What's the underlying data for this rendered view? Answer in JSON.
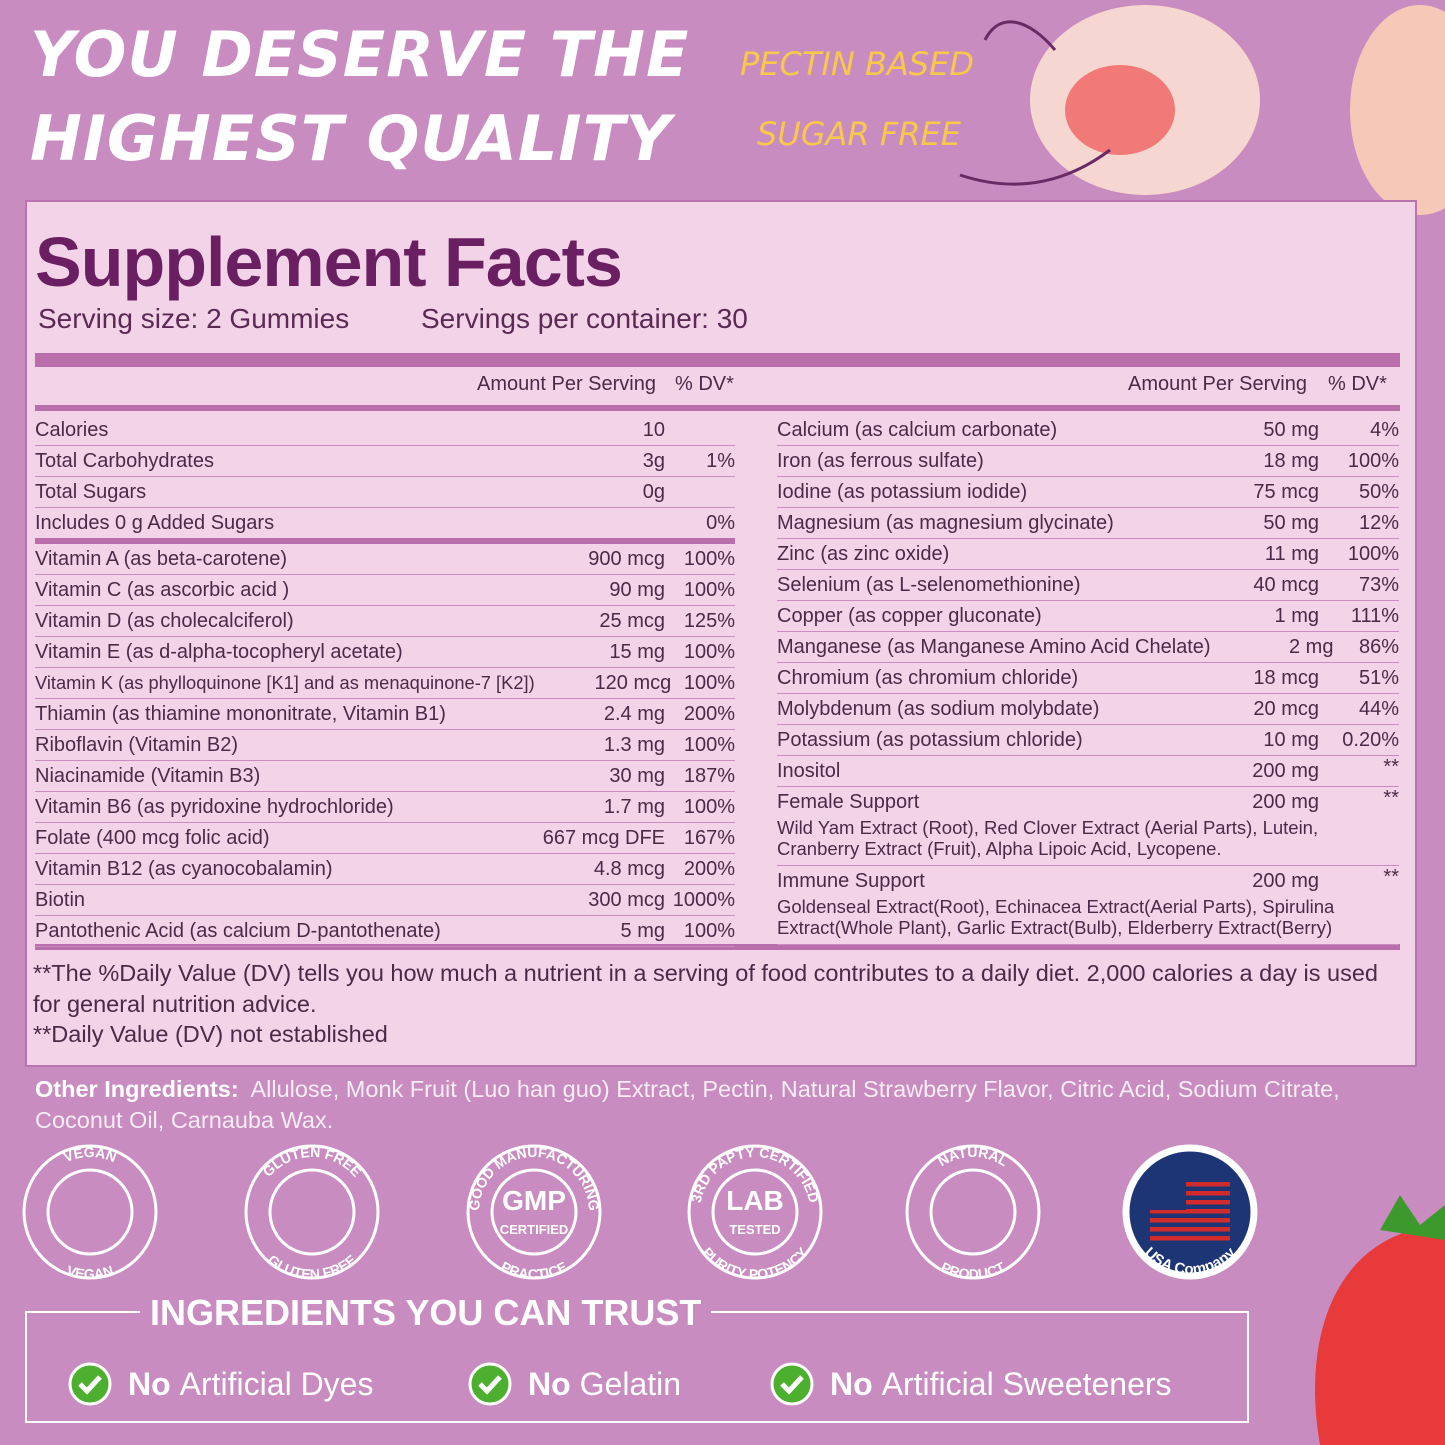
{
  "header": {
    "title_lines": [
      "YOU DESERVE THE",
      "HIGHEST QUALITY"
    ],
    "tags": [
      "PECTIN BASED",
      "SUGAR FREE"
    ]
  },
  "facts": {
    "title": "Supplement Facts",
    "serving_size": "Serving size: 2 Gummies",
    "servings_per_container": "Servings per container: 30",
    "columns": [
      "Amount Per Serving",
      "% DV*"
    ],
    "left_rows": [
      {
        "name": "Calories",
        "amount": "10"
      },
      {
        "name": "Total Carbohydrates",
        "amount": "3g",
        "dv": "1%"
      },
      {
        "name": "Total Sugars",
        "amount": "0g"
      },
      {
        "name": "Includes 0 g Added Sugars",
        "dv": "0%"
      },
      {
        "name": "Vitamin A (as beta-carotene)",
        "amount": "900 mcg",
        "dv": "100%"
      },
      {
        "name": "Vitamin C (as ascorbic acid )",
        "amount": "90 mg",
        "dv": "100%"
      },
      {
        "name": "Vitamin D (as cholecalciferol)",
        "amount": "25 mcg",
        "dv": "125%"
      },
      {
        "name": "Vitamin E (as d-alpha-tocopheryl acetate)",
        "amount": "15 mg",
        "dv": "100%"
      },
      {
        "name": "Vitamin K (as phylloquinone [K1] and as menaquinone-7 [K2])",
        "amount": "120 mcg",
        "dv": "100%"
      },
      {
        "name": "Thiamin (as thiamine mononitrate, Vitamin B1)",
        "amount": "2.4 mg",
        "dv": "200%"
      },
      {
        "name": "Riboflavin (Vitamin B2)",
        "amount": "1.3 mg",
        "dv": "100%"
      },
      {
        "name": "Niacinamide (Vitamin B3)",
        "amount": "30 mg",
        "dv": "187%"
      },
      {
        "name": "Vitamin B6 (as pyridoxine hydrochloride)",
        "amount": "1.7 mg",
        "dv": "100%"
      },
      {
        "name": "Folate (400 mcg folic acid)",
        "amount": "667 mcg DFE",
        "dv": "167%"
      },
      {
        "name": "Vitamin B12 (as cyanocobalamin)",
        "amount": "4.8 mcg",
        "dv": "200%"
      },
      {
        "name": "Biotin",
        "amount": "300 mcg",
        "dv": "1000%"
      },
      {
        "name": "Pantothenic Acid (as calcium D-pantothenate)",
        "amount": "5 mg",
        "dv": "100%"
      }
    ],
    "right_rows": [
      {
        "name": "Calcium (as calcium carbonate)",
        "amount": "50 mg",
        "dv": "4%"
      },
      {
        "name": "Iron (as ferrous sulfate)",
        "amount": "18 mg",
        "dv": "100%"
      },
      {
        "name": "Iodine (as potassium iodide)",
        "amount": "75 mcg",
        "dv": "50%"
      },
      {
        "name": "Magnesium (as magnesium glycinate)",
        "amount": "50 mg",
        "dv": "12%"
      },
      {
        "name": "Zinc (as zinc oxide)",
        "amount": "11 mg",
        "dv": "100%"
      },
      {
        "name": "Selenium (as L-selenomethionine)",
        "amount": "40 mcg",
        "dv": "73%"
      },
      {
        "name": "Copper (as copper gluconate)",
        "amount": "1 mg",
        "dv": "111%"
      },
      {
        "name": "Manganese (as Manganese Amino Acid Chelate)",
        "amount": "2 mg",
        "dv": "86%"
      },
      {
        "name": "Chromium (as chromium chloride)",
        "amount": "18 mcg",
        "dv": "51%"
      },
      {
        "name": "Molybdenum (as sodium molybdate)",
        "amount": "20 mcg",
        "dv": "44%"
      },
      {
        "name": "Potassium (as potassium chloride)",
        "amount": "10 mg",
        "dv": "0.20%"
      },
      {
        "name": "Inositol",
        "amount": "200 mg",
        "dv": "**"
      },
      {
        "name": "Female Support",
        "amount": "200 mg",
        "dv": "**",
        "detail": [
          "Wild Yam Extract (Root), Red Clover Extract (Aerial Parts), Lutein,",
          "Cranberry Extract (Fruit), Alpha Lipoic Acid, Lycopene."
        ]
      },
      {
        "name": "Immune Support",
        "amount": "200 mg",
        "dv": "**",
        "detail": [
          "Goldenseal Extract(Root), Echinacea Extract(Aerial Parts), Spirulina",
          "Extract(Whole Plant), Garlic Extract(Bulb), Elderberry Extract(Berry)"
        ]
      }
    ],
    "footnotes": [
      "**The %Daily Value (DV) tells you how much a nutrient in a serving of food contributes to a daily diet. 2,000 calories a day is used for general nutrition advice.",
      "**Daily Value (DV) not established"
    ]
  },
  "other_ingredients": {
    "label": "Other Ingredients:",
    "text": "Allulose, Monk Fruit (Luo han guo) Extract, Pectin, Natural Strawberry Flavor, Citric Acid, Sodium Citrate, Coconut Oil, Carnauba Wax."
  },
  "badges": [
    {
      "top": "VEGAN",
      "bottom": "VEGAN"
    },
    {
      "top": "GLUTEN FREE",
      "bottom": "GLUTEN FREE"
    },
    {
      "top": "GOOD MANUFACTURING",
      "bottom": "PRACTICE",
      "center": [
        "GMP",
        "CERTIFIED"
      ]
    },
    {
      "top": "3RD PAPTY CERTIFIED",
      "bottom": "PURITY POTENCY",
      "center": [
        "LAB",
        "TESTED"
      ]
    },
    {
      "top": "NATURAL",
      "bottom": "PRODUCT"
    },
    {
      "bottom": "USA Company"
    }
  ],
  "trust": {
    "title": "INGREDIENTS YOU CAN TRUST",
    "items": [
      {
        "lead": "No",
        "text": "Artificial Dyes"
      },
      {
        "lead": "No",
        "text": "Gelatin"
      },
      {
        "lead": "No",
        "text": "Artificial Sweeteners"
      }
    ]
  }
}
